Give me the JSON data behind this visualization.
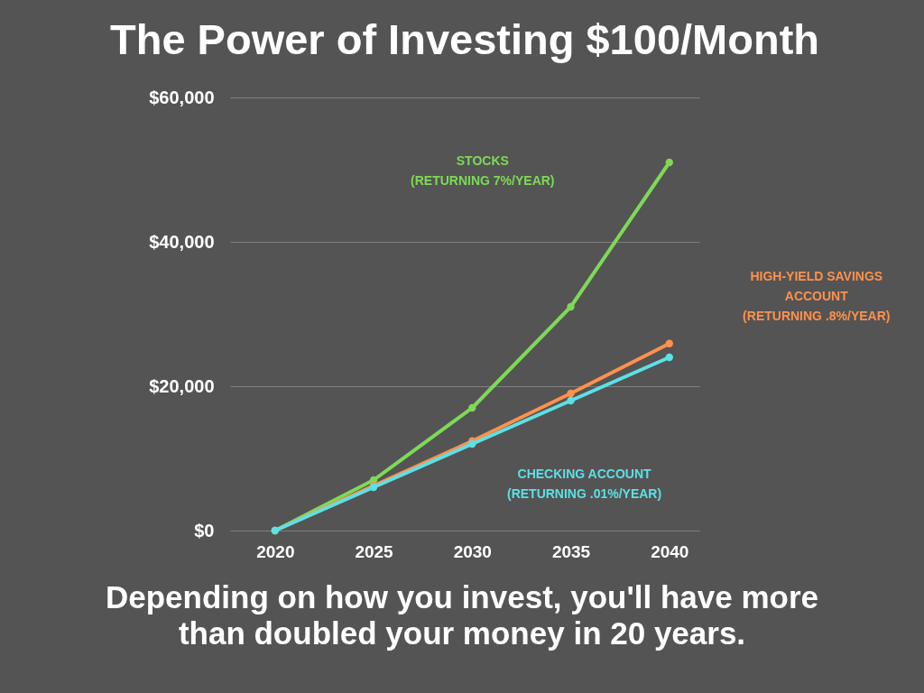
{
  "chart_data": {
    "type": "line",
    "title": "The Power of Investing $100/Month",
    "categories": [
      "2020",
      "2025",
      "2030",
      "2035",
      "2040"
    ],
    "series": [
      {
        "name": "STOCKS\n(RETURNING 7%/YEAR)",
        "color": "#7ed957",
        "values": [
          0,
          7000,
          17000,
          31000,
          51000
        ]
      },
      {
        "name": "HIGH-YIELD SAVINGS\nACCOUNT\n(RETURNING .8%/YEAR)",
        "color": "#ff914d",
        "values": [
          0,
          6200,
          12400,
          19000,
          25900
        ]
      },
      {
        "name": "CHECKING ACCOUNT\n(RETURNING .01%/YEAR)",
        "color": "#5ce1e6",
        "values": [
          0,
          6000,
          12000,
          18000,
          24000
        ]
      }
    ],
    "ylim": [
      0,
      60000
    ],
    "yticks": [
      {
        "value": 0,
        "label": "$0"
      },
      {
        "value": 20000,
        "label": "$20,000"
      },
      {
        "value": 40000,
        "label": "$40,000"
      },
      {
        "value": 60000,
        "label": "$60,000"
      }
    ],
    "grid": "y",
    "marker": "circle",
    "line_style": "solid",
    "annotations": [
      "Depending on how you invest, you'll have more\nthan doubled your money in 20 years."
    ]
  }
}
